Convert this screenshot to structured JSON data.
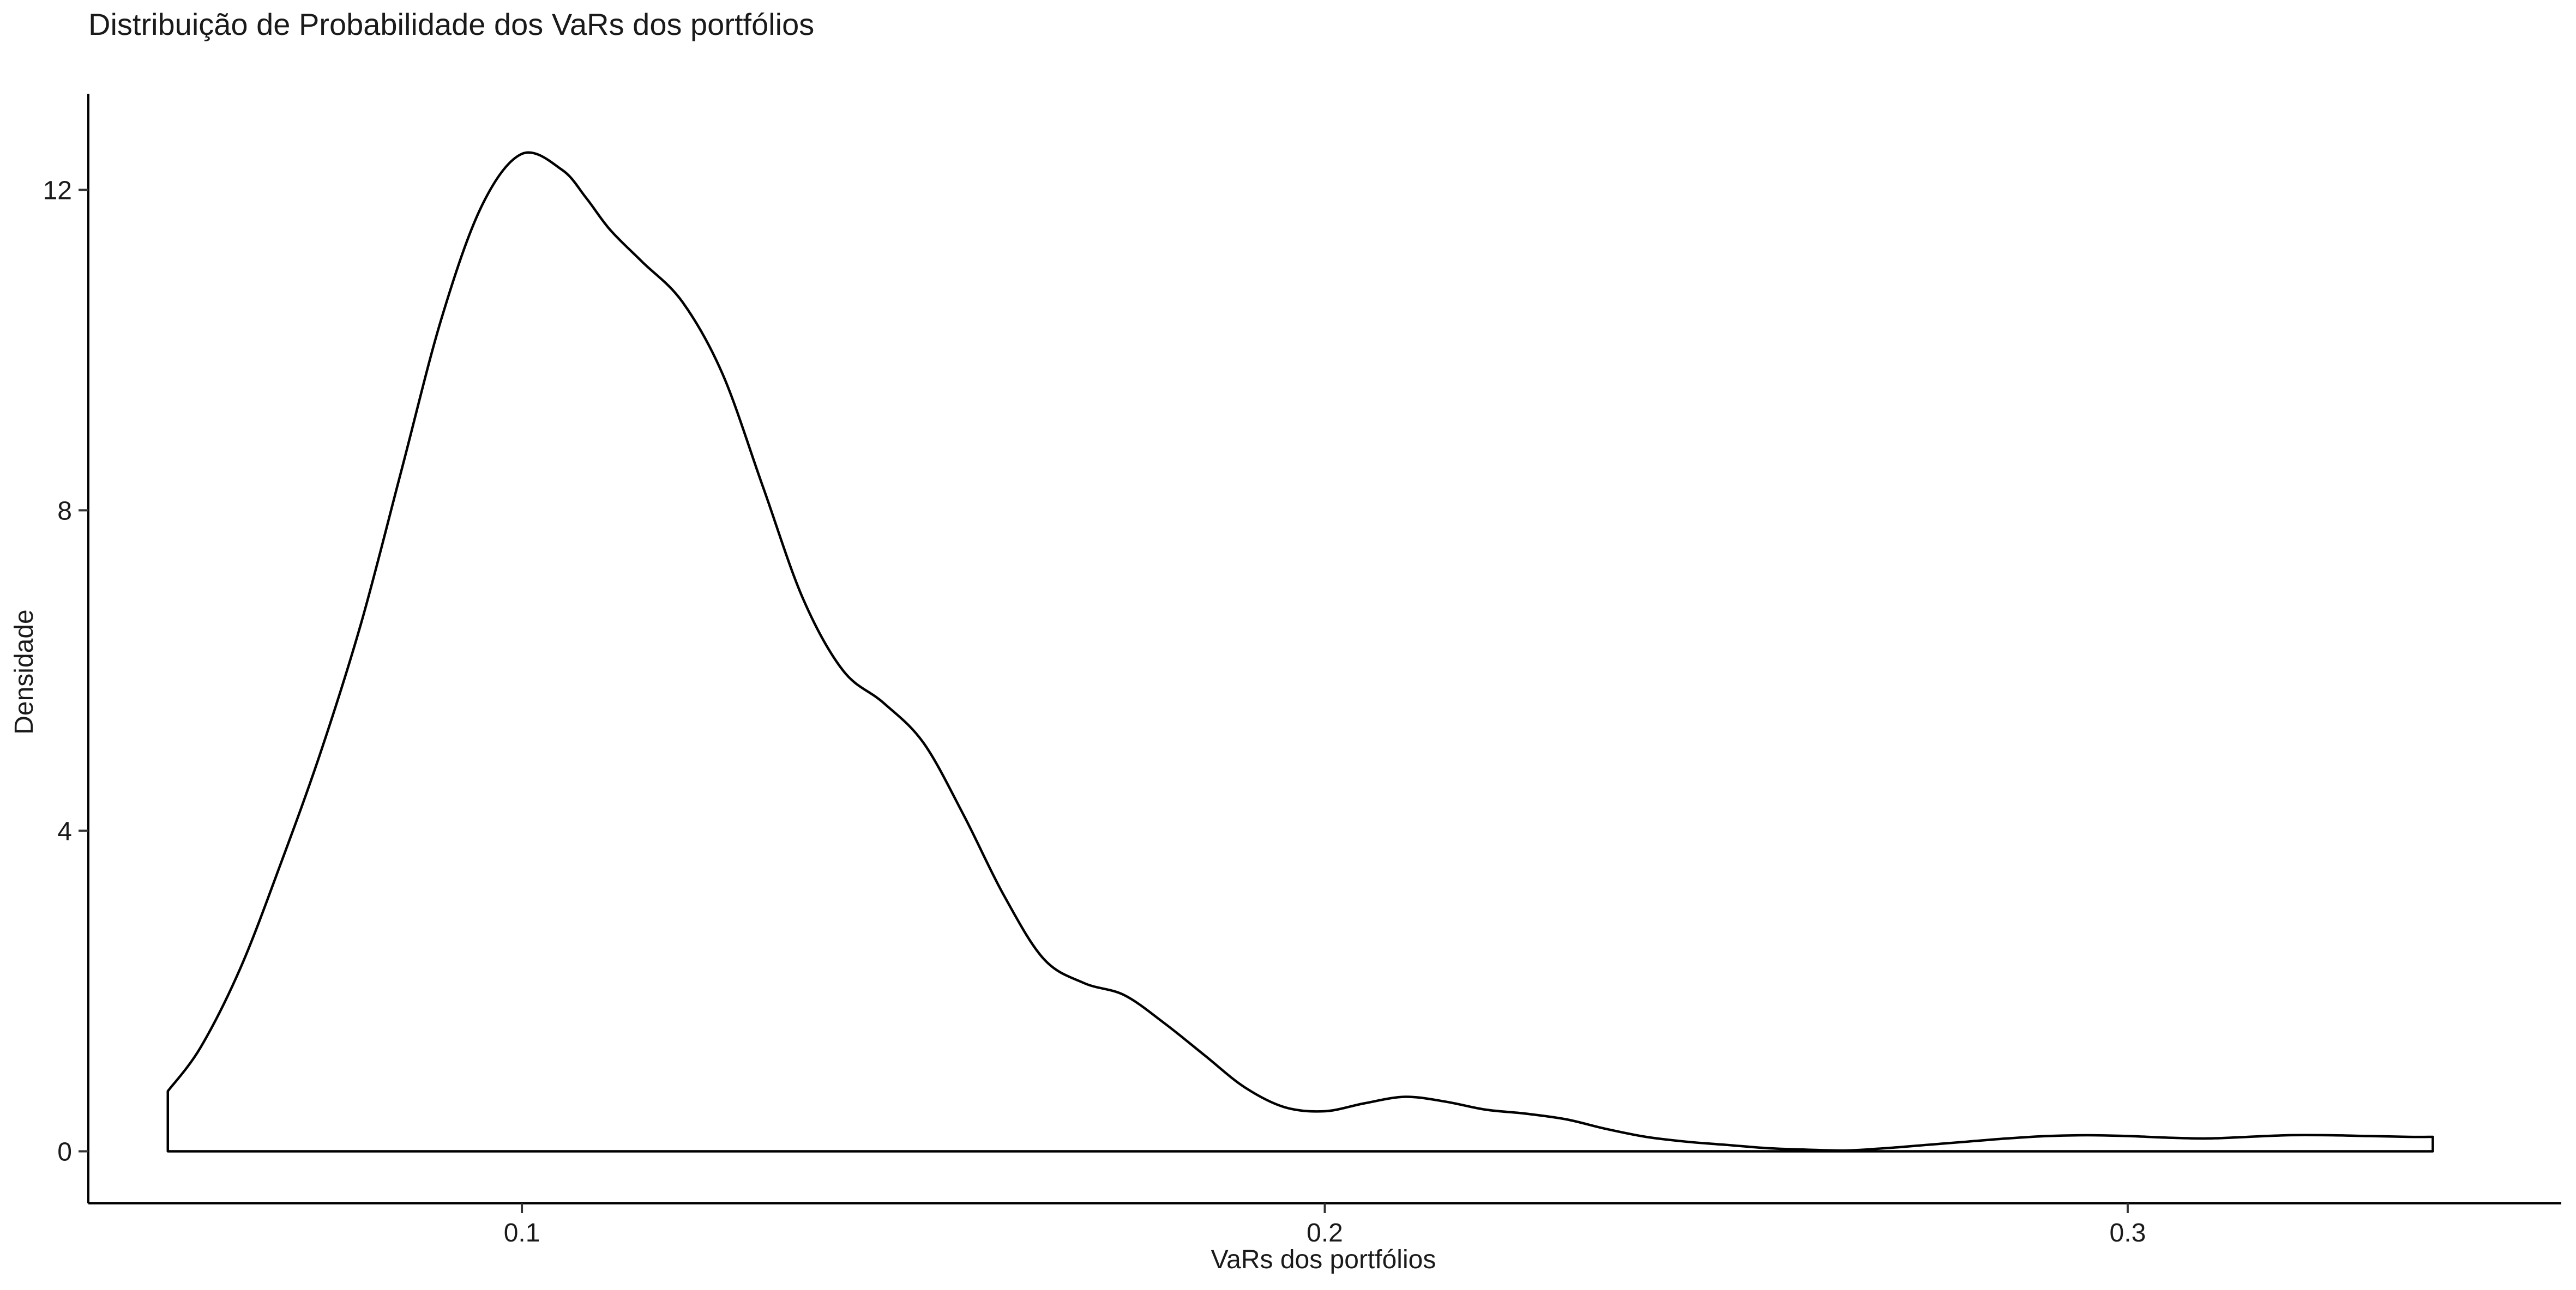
{
  "chart_data": {
    "type": "area",
    "title": "Distribuição de Probabilidade dos VaRs dos portfólios",
    "xlabel": "VaRs dos portfólios",
    "ylabel": "Densidade",
    "xlim": [
      0.046,
      0.354
    ],
    "ylim": [
      -0.65,
      13.2
    ],
    "x_ticks": [
      {
        "value": 0.1,
        "label": "0.1"
      },
      {
        "value": 0.2,
        "label": "0.2"
      },
      {
        "value": 0.3,
        "label": "0.3"
      }
    ],
    "y_ticks": [
      {
        "value": 0,
        "label": "0"
      },
      {
        "value": 4,
        "label": "4"
      },
      {
        "value": 8,
        "label": "8"
      },
      {
        "value": 12,
        "label": "12"
      }
    ],
    "grid": false,
    "legend": "none",
    "fill": "none",
    "line_color": "#000000",
    "series": [
      {
        "x": [
          0.0559,
          0.06,
          0.065,
          0.07,
          0.075,
          0.08,
          0.085,
          0.09,
          0.095,
          0.1,
          0.105,
          0.108,
          0.111,
          0.115,
          0.12,
          0.125,
          0.13,
          0.135,
          0.14,
          0.145,
          0.15,
          0.155,
          0.16,
          0.165,
          0.17,
          0.175,
          0.18,
          0.185,
          0.19,
          0.195,
          0.2,
          0.205,
          0.21,
          0.215,
          0.22,
          0.225,
          0.23,
          0.235,
          0.24,
          0.245,
          0.25,
          0.255,
          0.26,
          0.265,
          0.27,
          0.275,
          0.28,
          0.285,
          0.29,
          0.295,
          0.3,
          0.305,
          0.31,
          0.315,
          0.32,
          0.325,
          0.33,
          0.335,
          0.338
        ],
        "y": [
          0.75,
          1.3,
          2.3,
          3.6,
          5.0,
          6.6,
          8.5,
          10.4,
          11.8,
          12.45,
          12.25,
          11.9,
          11.5,
          11.1,
          10.6,
          9.7,
          8.3,
          6.9,
          6.0,
          5.6,
          5.1,
          4.2,
          3.2,
          2.4,
          2.1,
          1.95,
          1.6,
          1.2,
          0.8,
          0.55,
          0.5,
          0.6,
          0.68,
          0.62,
          0.52,
          0.47,
          0.4,
          0.28,
          0.18,
          0.12,
          0.08,
          0.04,
          0.02,
          0.01,
          0.04,
          0.08,
          0.12,
          0.16,
          0.19,
          0.2,
          0.19,
          0.17,
          0.16,
          0.18,
          0.2,
          0.2,
          0.19,
          0.18,
          0.18
        ]
      }
    ]
  }
}
